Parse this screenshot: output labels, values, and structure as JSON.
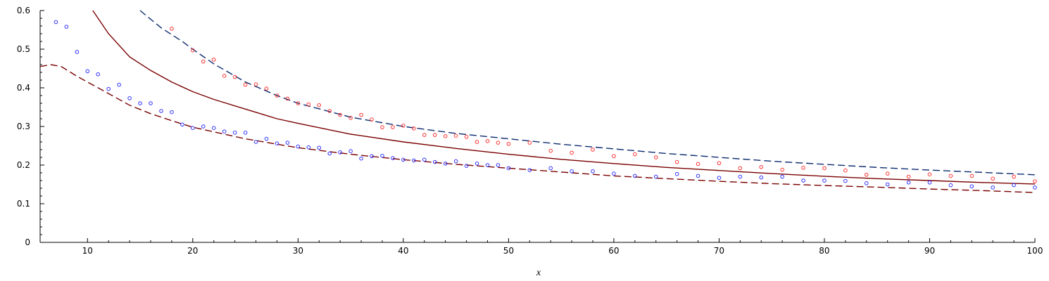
{
  "chart_data": {
    "type": "scatter",
    "title": "",
    "xlabel": "x",
    "ylabel": "",
    "xlim": [
      5.5,
      100
    ],
    "ylim": [
      0,
      0.6
    ],
    "x_ticks": [
      10,
      20,
      30,
      40,
      50,
      60,
      70,
      80,
      90,
      100
    ],
    "x_tick_labels": [
      "10",
      "20",
      "30",
      "40",
      "50",
      "60",
      "70",
      "80",
      "90",
      "100"
    ],
    "y_ticks": [
      0,
      0.1,
      0.2,
      0.3,
      0.4,
      0.5,
      0.6
    ],
    "y_tick_labels": [
      "0",
      "0.1",
      "0.2",
      "0.3",
      "0.4",
      "0.5",
      "0.6"
    ],
    "grid": false,
    "legend": "none",
    "lines": [
      {
        "style": "solid",
        "color": "#7a0000",
        "x": [
          10.5,
          12,
          14,
          16,
          18,
          20,
          22,
          25,
          28,
          30,
          35,
          40,
          45,
          50,
          55,
          60,
          65,
          70,
          75,
          80,
          85,
          90,
          95,
          100
        ],
        "y": [
          0.6,
          0.54,
          0.48,
          0.445,
          0.415,
          0.39,
          0.37,
          0.345,
          0.32,
          0.308,
          0.28,
          0.26,
          0.243,
          0.228,
          0.215,
          0.204,
          0.194,
          0.186,
          0.178,
          0.171,
          0.165,
          0.16,
          0.155,
          0.151
        ]
      },
      {
        "style": "dashed",
        "color": "#0a2a6e",
        "x": [
          15,
          17,
          19,
          20,
          22,
          25,
          28,
          30,
          35,
          40,
          45,
          50,
          55,
          60,
          65,
          70,
          75,
          80,
          85,
          90,
          95,
          100
        ],
        "y": [
          0.6,
          0.555,
          0.52,
          0.5,
          0.462,
          0.415,
          0.38,
          0.36,
          0.324,
          0.3,
          0.282,
          0.268,
          0.254,
          0.242,
          0.23,
          0.22,
          0.21,
          0.202,
          0.194,
          0.187,
          0.181,
          0.175
        ]
      },
      {
        "style": "dashed",
        "color": "#7a0000",
        "x": [
          5.5,
          6.5,
          7.5,
          9,
          10,
          12,
          14,
          16,
          18,
          20,
          25,
          30,
          35,
          40,
          45,
          50,
          55,
          60,
          65,
          70,
          75,
          80,
          85,
          90,
          95,
          100
        ],
        "y": [
          0.455,
          0.46,
          0.455,
          0.43,
          0.415,
          0.385,
          0.355,
          0.333,
          0.315,
          0.298,
          0.268,
          0.245,
          0.228,
          0.214,
          0.202,
          0.192,
          0.182,
          0.172,
          0.165,
          0.158,
          0.152,
          0.147,
          0.143,
          0.138,
          0.134,
          0.129
        ]
      }
    ],
    "series": [
      {
        "marker": "circle",
        "color": "#ff3333",
        "x": [
          18,
          20,
          21,
          22,
          23,
          24,
          25,
          26,
          27,
          28,
          29,
          30,
          31,
          32,
          33,
          34,
          35,
          36,
          37,
          38,
          39,
          40,
          41,
          42,
          43,
          44,
          45,
          46,
          47,
          48,
          49,
          50,
          52,
          54,
          56,
          58,
          60,
          62,
          64,
          66,
          68,
          70,
          72,
          74,
          76,
          78,
          80,
          82,
          84,
          86,
          88,
          90,
          92,
          94,
          96,
          98,
          100
        ],
        "y": [
          0.553,
          0.497,
          0.468,
          0.473,
          0.431,
          0.428,
          0.408,
          0.409,
          0.398,
          0.38,
          0.372,
          0.36,
          0.357,
          0.355,
          0.34,
          0.33,
          0.322,
          0.33,
          0.318,
          0.298,
          0.298,
          0.302,
          0.295,
          0.278,
          0.278,
          0.275,
          0.276,
          0.273,
          0.26,
          0.262,
          0.258,
          0.255,
          0.258,
          0.237,
          0.232,
          0.24,
          0.223,
          0.228,
          0.22,
          0.208,
          0.203,
          0.205,
          0.192,
          0.195,
          0.188,
          0.193,
          0.192,
          0.186,
          0.175,
          0.178,
          0.17,
          0.176,
          0.172,
          0.172,
          0.165,
          0.17,
          0.158
        ]
      },
      {
        "marker": "circle",
        "color": "#3333ff",
        "x": [
          7,
          8,
          9,
          10,
          11,
          12,
          13,
          14,
          15,
          16,
          17,
          18,
          19,
          20,
          21,
          22,
          23,
          24,
          25,
          26,
          27,
          28,
          29,
          30,
          31,
          32,
          33,
          34,
          35,
          36,
          37,
          38,
          39,
          40,
          41,
          42,
          43,
          44,
          45,
          46,
          47,
          48,
          49,
          50,
          52,
          54,
          56,
          58,
          60,
          62,
          64,
          66,
          68,
          70,
          72,
          74,
          76,
          78,
          80,
          82,
          84,
          86,
          88,
          90,
          92,
          94,
          96,
          98,
          100
        ],
        "y": [
          0.57,
          0.558,
          0.493,
          0.443,
          0.435,
          0.397,
          0.408,
          0.373,
          0.36,
          0.36,
          0.34,
          0.337,
          0.305,
          0.296,
          0.3,
          0.296,
          0.287,
          0.284,
          0.284,
          0.26,
          0.268,
          0.256,
          0.258,
          0.248,
          0.246,
          0.245,
          0.23,
          0.233,
          0.236,
          0.217,
          0.223,
          0.224,
          0.218,
          0.214,
          0.212,
          0.214,
          0.208,
          0.204,
          0.21,
          0.198,
          0.204,
          0.2,
          0.2,
          0.192,
          0.187,
          0.192,
          0.184,
          0.184,
          0.178,
          0.172,
          0.17,
          0.177,
          0.172,
          0.167,
          0.17,
          0.168,
          0.17,
          0.16,
          0.16,
          0.159,
          0.153,
          0.15,
          0.155,
          0.155,
          0.148,
          0.145,
          0.142,
          0.148,
          0.142
        ]
      }
    ]
  }
}
